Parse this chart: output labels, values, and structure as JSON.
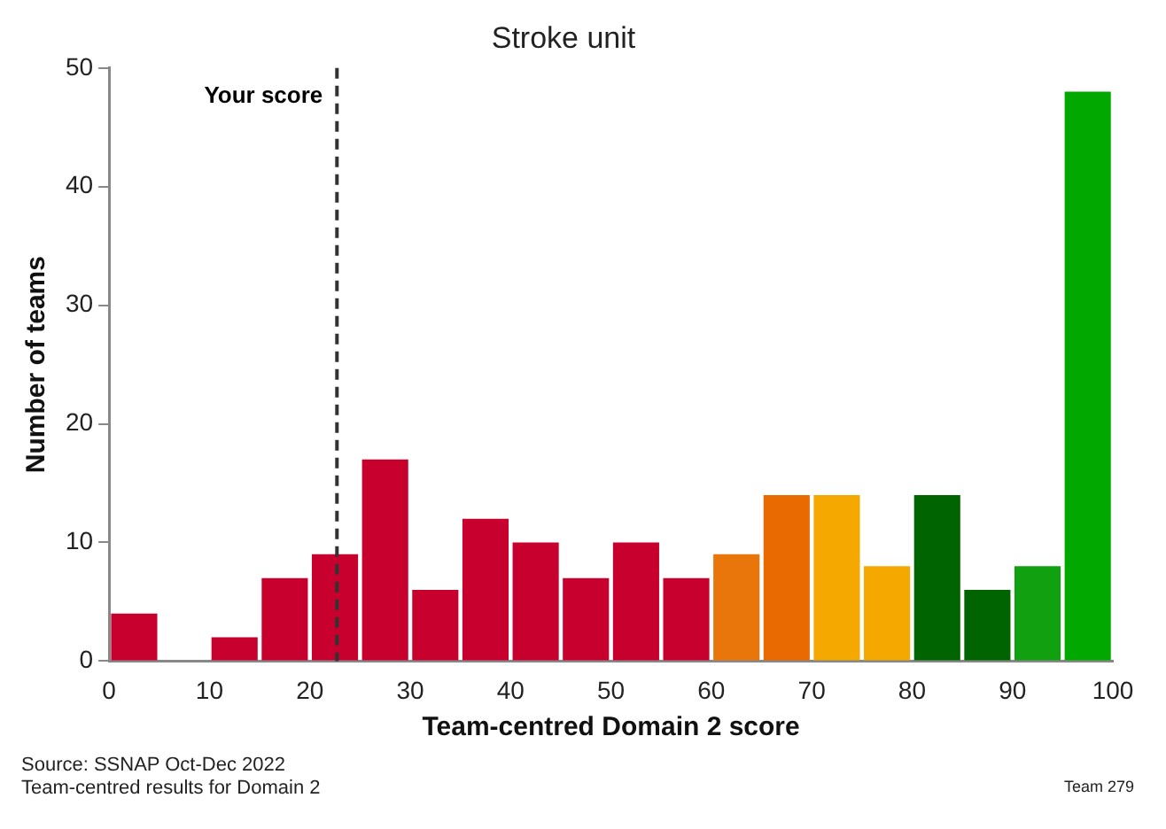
{
  "chart_data": {
    "type": "histogram",
    "title": "Stroke unit",
    "xlabel": "Team-centred Domain 2 score",
    "ylabel": "Number of teams",
    "bins": [
      0,
      5,
      10,
      15,
      20,
      25,
      30,
      35,
      40,
      45,
      50,
      55,
      60,
      65,
      70,
      75,
      80,
      85,
      90,
      95,
      100
    ],
    "values": [
      4,
      0,
      2,
      7,
      9,
      17,
      6,
      12,
      10,
      7,
      10,
      7,
      9,
      14,
      14,
      8,
      14,
      6,
      8,
      48
    ],
    "colors": [
      "#c8002e",
      "#c8002e",
      "#c8002e",
      "#c8002e",
      "#c8002e",
      "#c8002e",
      "#c8002e",
      "#c8002e",
      "#c8002e",
      "#c8002e",
      "#c8002e",
      "#c8002e",
      "#e8760a",
      "#e86a00",
      "#f5a800",
      "#f5a800",
      "#006400",
      "#006400",
      "#10a010",
      "#00a800"
    ],
    "xlim": [
      0,
      100
    ],
    "xticks": [
      0,
      10,
      20,
      30,
      40,
      50,
      60,
      70,
      80,
      90,
      100
    ],
    "ylim": [
      0,
      50
    ],
    "yticks": [
      0,
      10,
      20,
      30,
      40,
      50
    ],
    "grid": false,
    "ref_lines": [
      {
        "axis": "x",
        "value": 22.7,
        "label": "Your score",
        "color": "#333333",
        "line_style": "dashed"
      }
    ],
    "annotations": [
      "Source: SSNAP Oct-Dec 2022",
      "Team-centred results for Domain 2",
      "Team 279"
    ]
  }
}
